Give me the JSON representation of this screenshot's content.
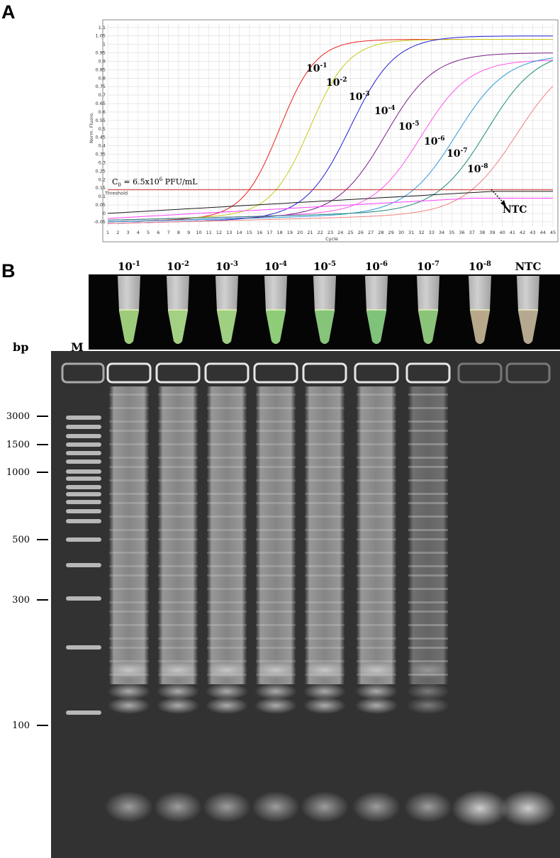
{
  "panel_a": {
    "letter": "A",
    "chart_data": {
      "type": "line",
      "ylabel": "Norm. Fluoro.",
      "xlabel": "Cycle",
      "xlim": [
        1,
        45
      ],
      "ylim": [
        -0.08,
        1.12
      ],
      "x_ticks": [
        1,
        2,
        3,
        4,
        5,
        6,
        7,
        8,
        9,
        10,
        11,
        12,
        13,
        14,
        15,
        16,
        17,
        18,
        19,
        20,
        21,
        22,
        23,
        24,
        25,
        26,
        27,
        28,
        29,
        30,
        31,
        32,
        33,
        34,
        35,
        36,
        37,
        38,
        39,
        40,
        41,
        42,
        43,
        44,
        45
      ],
      "y_ticks": [
        "-0.05",
        "0",
        "0.05",
        "0.1",
        "0.15",
        "0.2",
        "0.25",
        "0.3",
        "0.35",
        "0.4",
        "0.45",
        "0.5",
        "0.55",
        "0.6",
        "0.65",
        "0.7",
        "0.75",
        "0.8",
        "0.85",
        "0.9",
        "0.95",
        "1",
        "1.05",
        "1.1"
      ],
      "grid": true,
      "threshold": {
        "value": 0.14,
        "label": "Threshold",
        "color": "#cc2222"
      },
      "c0_label": "C",
      "c0_sub": "0",
      "c0_value": " = 6.5x10",
      "c0_exp": "6",
      "c0_unit": " PFU/mL",
      "series": [
        {
          "name": "10",
          "exp": "-1",
          "color": "#e8201c",
          "midpoint": 18.0,
          "top": 1.03,
          "base0": -0.05,
          "slope": 0.55
        },
        {
          "name": "10",
          "exp": "-2",
          "color": "#c8c818",
          "midpoint": 21.0,
          "top": 1.03,
          "base0": -0.04,
          "slope": 0.52
        },
        {
          "name": "10",
          "exp": "-3",
          "color": "#1f1fd6",
          "midpoint": 25.0,
          "top": 1.05,
          "base0": -0.06,
          "slope": 0.45
        },
        {
          "name": "10",
          "exp": "-4",
          "color": "#7a1a8a",
          "midpoint": 28.5,
          "top": 0.95,
          "base0": -0.05,
          "slope": 0.42
        },
        {
          "name": "10",
          "exp": "-5",
          "color": "#ff55ee",
          "midpoint": 32.0,
          "top": 0.91,
          "base0": -0.04,
          "slope": 0.42
        },
        {
          "name": "10",
          "exp": "-6",
          "color": "#2a9ad6",
          "midpoint": 35.5,
          "top": 0.94,
          "base0": -0.05,
          "slope": 0.4
        },
        {
          "name": "10",
          "exp": "-7",
          "color": "#1a8a7a",
          "midpoint": 38.5,
          "top": 0.97,
          "base0": -0.04,
          "slope": 0.4
        },
        {
          "name": "10",
          "exp": "-8",
          "color": "#f08080",
          "midpoint": 41.5,
          "top": 0.95,
          "base0": -0.06,
          "slope": 0.38
        },
        {
          "name": "NTC",
          "exp": "",
          "color": "#1a1a1a",
          "flat": true,
          "values": [
            0.0,
            0.13
          ],
          "color2": "#ff40ff"
        }
      ],
      "ntc_label": "NTC"
    }
  },
  "panel_b": {
    "letter": "B",
    "tube_labels": [
      {
        "base": "10",
        "exp": "-1"
      },
      {
        "base": "10",
        "exp": "-2"
      },
      {
        "base": "10",
        "exp": "-3"
      },
      {
        "base": "10",
        "exp": "-4"
      },
      {
        "base": "10",
        "exp": "-5"
      },
      {
        "base": "10",
        "exp": "-6"
      },
      {
        "base": "10",
        "exp": "-7"
      },
      {
        "base": "10",
        "exp": "-8"
      },
      {
        "base": "NTC",
        "exp": ""
      }
    ],
    "tube_colors": [
      "#9ccc7a",
      "#a4d084",
      "#9fcf80",
      "#8fcc78",
      "#86c47a",
      "#7fc27a",
      "#8ac478",
      "#b8a88a",
      "#b5a890"
    ],
    "bp_header": "bp",
    "marker_label": "M",
    "bp_markers": [
      "3000",
      "1500",
      "1000",
      "500",
      "300",
      "100"
    ]
  }
}
